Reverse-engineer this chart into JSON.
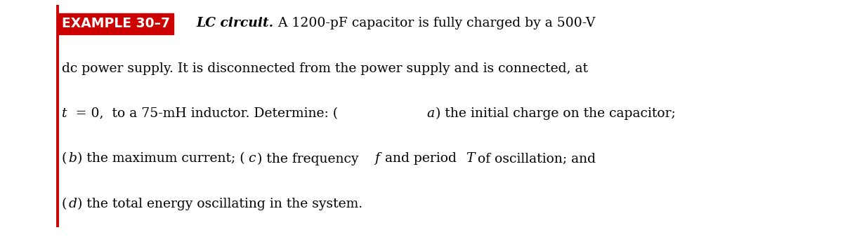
{
  "background_color": "#ffffff",
  "border_color": "#cc0000",
  "label_bg_color": "#cc0000",
  "label_text": "EXAMPLE 30–7",
  "label_text_color": "#ffffff",
  "label_fontsize": 13.5,
  "label_fontweight": "bold",
  "title_text": "LC circuit.",
  "title_fontsize": 13.5,
  "body_lines": [
    "A 1200-pF capacitor is fully charged by a 500-V",
    "dc power supply. It is disconnected from the power supply and is connected, at",
    "  t = 0,  to a 75-mH inductor. Determine: (a) the initial charge on the capacitor;",
    "(b) the maximum current; (c) the frequency f and period T of oscillation; and",
    "(d) the total energy oscillating in the system."
  ],
  "body_fontsize": 13.5,
  "fig_width": 12.0,
  "fig_height": 3.48,
  "dpi": 100
}
